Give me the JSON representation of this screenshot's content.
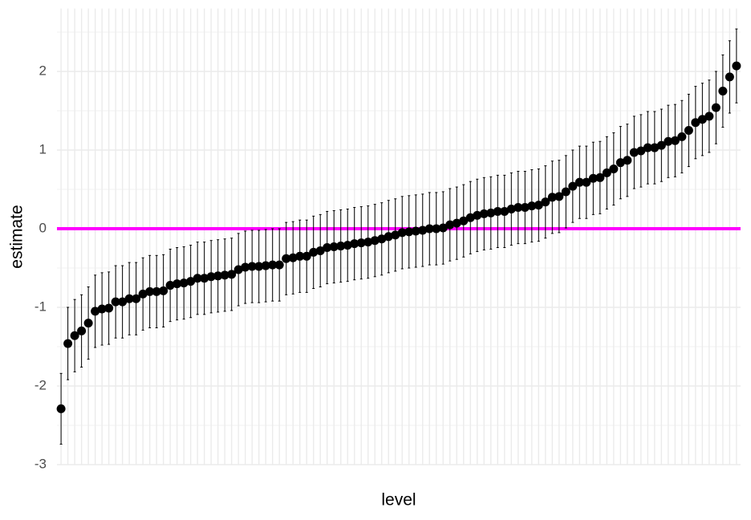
{
  "chart_data": {
    "type": "errorbar",
    "x_label": "level",
    "y_label": "estimate",
    "categories": [
      null,
      null,
      null,
      null,
      null,
      null,
      null,
      null,
      null,
      null,
      null,
      null,
      null,
      null,
      null,
      null,
      null,
      null,
      null,
      null,
      null,
      null,
      null,
      null,
      null,
      null,
      null,
      null,
      null,
      null,
      null,
      null,
      null,
      null,
      null,
      null,
      null,
      null,
      null,
      null,
      null,
      null,
      null,
      null,
      null,
      null,
      null,
      null,
      null,
      null,
      null,
      null,
      null,
      null,
      null,
      null,
      null,
      null,
      null,
      null,
      null,
      null,
      null,
      null,
      null,
      null,
      null,
      null,
      null,
      null,
      null,
      null,
      null,
      null,
      null,
      null,
      null,
      null,
      null,
      null,
      null,
      null,
      null,
      null,
      null,
      null,
      null,
      null,
      null,
      null,
      null,
      null,
      null,
      null,
      null,
      null,
      null,
      null,
      null,
      null
    ],
    "values": [
      -2.29,
      -1.46,
      -1.36,
      -1.3,
      -1.2,
      -1.05,
      -1.02,
      -1.01,
      -0.93,
      -0.93,
      -0.89,
      -0.89,
      -0.83,
      -0.8,
      -0.8,
      -0.79,
      -0.72,
      -0.7,
      -0.69,
      -0.67,
      -0.63,
      -0.63,
      -0.61,
      -0.6,
      -0.59,
      -0.58,
      -0.52,
      -0.49,
      -0.48,
      -0.48,
      -0.47,
      -0.46,
      -0.46,
      -0.38,
      -0.37,
      -0.35,
      -0.35,
      -0.3,
      -0.28,
      -0.24,
      -0.23,
      -0.22,
      -0.21,
      -0.19,
      -0.18,
      -0.17,
      -0.15,
      -0.13,
      -0.1,
      -0.08,
      -0.05,
      -0.04,
      -0.03,
      -0.02,
      0,
      0,
      0.01,
      0.05,
      0.07,
      0.1,
      0.14,
      0.17,
      0.19,
      0.2,
      0.22,
      0.22,
      0.25,
      0.27,
      0.27,
      0.29,
      0.3,
      0.34,
      0.4,
      0.41,
      0.47,
      0.54,
      0.59,
      0.59,
      0.64,
      0.65,
      0.71,
      0.76,
      0.84,
      0.87,
      0.97,
      0.99,
      1.03,
      1.03,
      1.06,
      1.11,
      1.12,
      1.17,
      1.25,
      1.35,
      1.39,
      1.43,
      1.54,
      1.75,
      1.93,
      2.07
    ],
    "errors": [
      0.45,
      0.46,
      0.46,
      0.46,
      0.46,
      0.46,
      0.46,
      0.46,
      0.46,
      0.46,
      0.46,
      0.46,
      0.46,
      0.46,
      0.46,
      0.46,
      0.46,
      0.46,
      0.46,
      0.46,
      0.46,
      0.46,
      0.46,
      0.46,
      0.46,
      0.46,
      0.46,
      0.46,
      0.46,
      0.46,
      0.46,
      0.46,
      0.46,
      0.46,
      0.46,
      0.46,
      0.46,
      0.46,
      0.46,
      0.46,
      0.46,
      0.46,
      0.46,
      0.46,
      0.46,
      0.46,
      0.46,
      0.46,
      0.46,
      0.46,
      0.46,
      0.46,
      0.46,
      0.46,
      0.46,
      0.46,
      0.46,
      0.46,
      0.46,
      0.46,
      0.46,
      0.46,
      0.46,
      0.46,
      0.46,
      0.46,
      0.46,
      0.46,
      0.46,
      0.46,
      0.46,
      0.46,
      0.46,
      0.46,
      0.46,
      0.46,
      0.46,
      0.46,
      0.46,
      0.46,
      0.46,
      0.46,
      0.46,
      0.46,
      0.46,
      0.46,
      0.46,
      0.46,
      0.46,
      0.46,
      0.46,
      0.46,
      0.46,
      0.46,
      0.46,
      0.46,
      0.46,
      0.46,
      0.46,
      0.47
    ],
    "color": "#000000",
    "ylim": [
      -3,
      2.8
    ],
    "yticks": [
      -3,
      -2,
      -1,
      0,
      1,
      2
    ],
    "minor_yticks": [
      -2.5,
      -1.5,
      -0.5,
      0.5,
      1.5,
      2.5
    ],
    "grid": true,
    "hline": {
      "value": 0,
      "color": "#ff00ff"
    }
  }
}
